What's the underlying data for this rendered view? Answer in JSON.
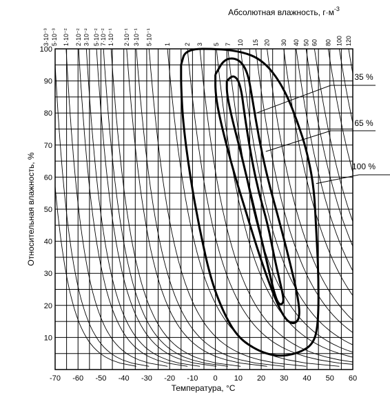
{
  "chart_data": {
    "type": "line",
    "title": "",
    "xlabel": "Температура, °С",
    "ylabel": "Относительная влажность, %",
    "x2label": "Абсолютная влажность, г·м",
    "x2label_sup": "-3",
    "xlim": [
      -70,
      60
    ],
    "ylim": [
      0,
      100
    ],
    "xticks": [
      -70,
      -60,
      -50,
      -40,
      -30,
      -20,
      -10,
      0,
      10,
      20,
      30,
      40,
      50,
      60
    ],
    "xtick_labels": [
      "-70",
      "-60",
      "-50",
      "-40",
      "-30",
      "-20",
      "-10",
      "0",
      "10",
      "20",
      "30",
      "40",
      "50",
      "60"
    ],
    "yticks": [
      10,
      20,
      30,
      40,
      50,
      60,
      70,
      80,
      90,
      100
    ],
    "ytick_labels": [
      "10",
      "20",
      "30",
      "40",
      "50",
      "60",
      "70",
      "80",
      "90",
      "100"
    ],
    "grid": true,
    "abs_humidity_labels": [
      "3·10⁻³",
      "5·10⁻³",
      "1·10⁻²",
      "2·10⁻²",
      "3·10⁻²",
      "5·10⁻²",
      "7·10⁻²",
      "1·10⁻¹",
      "2·10⁻¹",
      "3·10⁻¹",
      "5·10⁻¹",
      "1",
      "2",
      "3",
      "5",
      "7",
      "10",
      "15",
      "20",
      "30",
      "40",
      "50",
      "60",
      "80",
      "100",
      "120"
    ],
    "abs_humidity_values": [
      0.003,
      0.005,
      0.01,
      0.02,
      0.03,
      0.05,
      0.07,
      0.1,
      0.2,
      0.3,
      0.5,
      1,
      2,
      3,
      5,
      7,
      10,
      15,
      20,
      30,
      40,
      50,
      60,
      80,
      100,
      120
    ],
    "contours": [
      {
        "label": "35 %",
        "points": [
          [
            5,
            90
          ],
          [
            8,
            92
          ],
          [
            11,
            89
          ],
          [
            13,
            78
          ],
          [
            16,
            65
          ],
          [
            19,
            55
          ],
          [
            23,
            45
          ],
          [
            26,
            34
          ],
          [
            29,
            25
          ],
          [
            30,
            21
          ],
          [
            28,
            20
          ],
          [
            26,
            23
          ],
          [
            23,
            32
          ],
          [
            19,
            44
          ],
          [
            15,
            56
          ],
          [
            11,
            68
          ],
          [
            7,
            79
          ],
          [
            5,
            86
          ],
          [
            5,
            90
          ]
        ]
      },
      {
        "label": "65 %",
        "points": [
          [
            0,
            92
          ],
          [
            4,
            97
          ],
          [
            10,
            97
          ],
          [
            14,
            93
          ],
          [
            16,
            85
          ],
          [
            19,
            72
          ],
          [
            23,
            59
          ],
          [
            28,
            46
          ],
          [
            32,
            35
          ],
          [
            36,
            23
          ],
          [
            37,
            16
          ],
          [
            34,
            14
          ],
          [
            30,
            16
          ],
          [
            25,
            24
          ],
          [
            19,
            36
          ],
          [
            13,
            50
          ],
          [
            7,
            64
          ],
          [
            2,
            78
          ],
          [
            0,
            86
          ],
          [
            0,
            92
          ]
        ]
      },
      {
        "label": "100 %",
        "points": [
          [
            -15,
            95
          ],
          [
            -13,
            100
          ],
          [
            2,
            100
          ],
          [
            12,
            99
          ],
          [
            19,
            97
          ],
          [
            25,
            93
          ],
          [
            31,
            86
          ],
          [
            36,
            77
          ],
          [
            40,
            68
          ],
          [
            43,
            57
          ],
          [
            44,
            44
          ],
          [
            45,
            30
          ],
          [
            45,
            15
          ],
          [
            43,
            8
          ],
          [
            36,
            5
          ],
          [
            27,
            4
          ],
          [
            18,
            6
          ],
          [
            10,
            10
          ],
          [
            4,
            17
          ],
          [
            -2,
            28
          ],
          [
            -7,
            44
          ],
          [
            -11,
            60
          ],
          [
            -14,
            76
          ],
          [
            -15,
            88
          ],
          [
            -15,
            95
          ]
        ]
      }
    ]
  }
}
